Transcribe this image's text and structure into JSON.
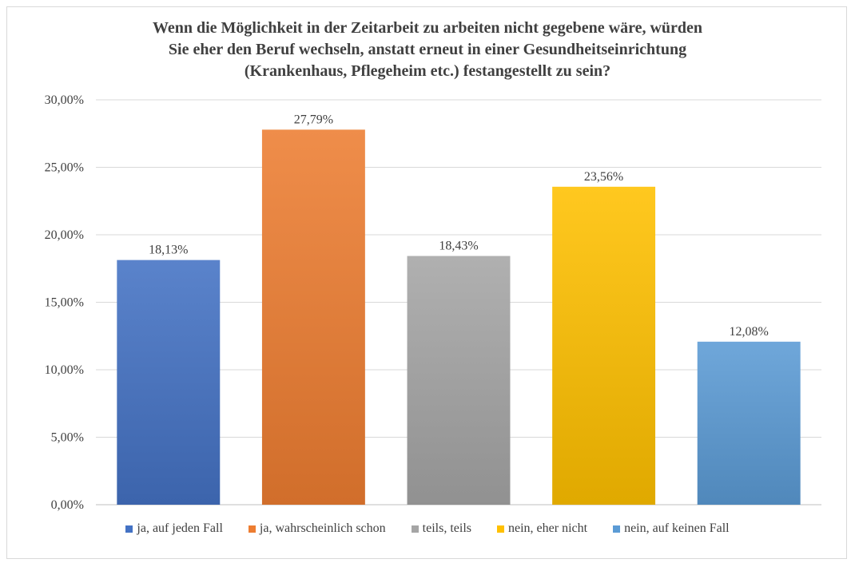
{
  "chart_data": {
    "type": "bar",
    "title_lines": [
      "Wenn die Möglichkeit in der Zeitarbeit zu arbeiten nicht gegebene wäre, würden",
      "Sie eher den Beruf wechseln, anstatt erneut in einer Gesundheitseinrichtung",
      "(Krankenhaus, Pflegeheim etc.) festangestellt zu sein?"
    ],
    "categories": [
      "ja, auf jeden Fall",
      "ja, wahrscheinlich schon",
      "teils, teils",
      "nein, eher nicht",
      "nein, auf keinen Fall"
    ],
    "values": [
      18.13,
      27.79,
      18.43,
      23.56,
      12.08
    ],
    "data_labels": [
      "18,13%",
      "27,79%",
      "18,43%",
      "23,56%",
      "12,08%"
    ],
    "colors": [
      "#4472c4",
      "#ed7d31",
      "#a5a5a5",
      "#ffc000",
      "#5b9bd5"
    ],
    "y_ticks": [
      "0,00%",
      "5,00%",
      "10,00%",
      "15,00%",
      "20,00%",
      "25,00%",
      "30,00%"
    ],
    "ylim": [
      0,
      30
    ],
    "grid": true,
    "legend_position": "bottom"
  }
}
